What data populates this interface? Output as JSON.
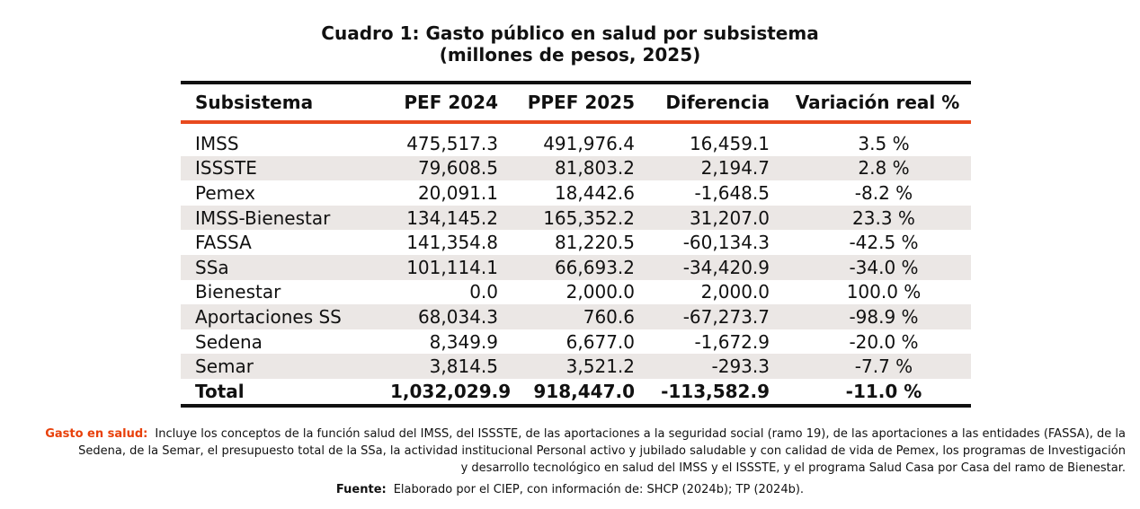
{
  "title": {
    "line1": "Cuadro 1: Gasto público en salud por subsistema",
    "line2": "(millones de pesos, 2025)"
  },
  "colors": {
    "accent": "#E84A1E",
    "rule": "#111111",
    "shade": "#EBE7E5"
  },
  "table": {
    "headers": [
      "Subsistema",
      "PEF 2024",
      "PPEF 2025",
      "Diferencia",
      "Variación real %"
    ],
    "rows": [
      [
        "IMSS",
        "475,517.3",
        "491,976.4",
        "16,459.1",
        "3.5 %"
      ],
      [
        "ISSSTE",
        "79,608.5",
        "81,803.2",
        "2,194.7",
        "2.8 %"
      ],
      [
        "Pemex",
        "20,091.1",
        "18,442.6",
        "-1,648.5",
        "-8.2 %"
      ],
      [
        "IMSS-Bienestar",
        "134,145.2",
        "165,352.2",
        "31,207.0",
        "23.3 %"
      ],
      [
        "FASSA",
        "141,354.8",
        "81,220.5",
        "-60,134.3",
        "-42.5 %"
      ],
      [
        "SSa",
        "101,114.1",
        "66,693.2",
        "-34,420.9",
        "-34.0 %"
      ],
      [
        "Bienestar",
        "0.0",
        "2,000.0",
        "2,000.0",
        "100.0 %"
      ],
      [
        "Aportaciones SS",
        "68,034.3",
        "760.6",
        "-67,273.7",
        "-98.9 %"
      ],
      [
        "Sedena",
        "8,349.9",
        "6,677.0",
        "-1,672.9",
        "-20.0 %"
      ],
      [
        "Semar",
        "3,814.5",
        "3,521.2",
        "-293.3",
        "-7.7 %"
      ],
      [
        "Total",
        "1,032,029.9",
        "918,447.0",
        "-113,582.9",
        "-11.0 %"
      ]
    ]
  },
  "note": {
    "label": "Gasto en salud:",
    "line1": "Incluye los conceptos de la función salud del IMSS, del ISSSTE, de las aportaciones a la seguridad social (ramo 19), de las aportaciones a las entidades (FASSA), de la",
    "line2": "Sedena, de la Semar, el presupuesto total de la SSa, la actividad institucional Personal activo y jubilado saludable y con calidad de vida de Pemex, los programas de Investigación",
    "line3": "y desarrollo tecnológico en salud del IMSS y el ISSSTE, y el programa Salud Casa por Casa del ramo de Bienestar."
  },
  "source": {
    "label": "Fuente:",
    "text": "Elaborado por el CIEP, con información de: SHCP (2024b); TP (2024b)."
  }
}
